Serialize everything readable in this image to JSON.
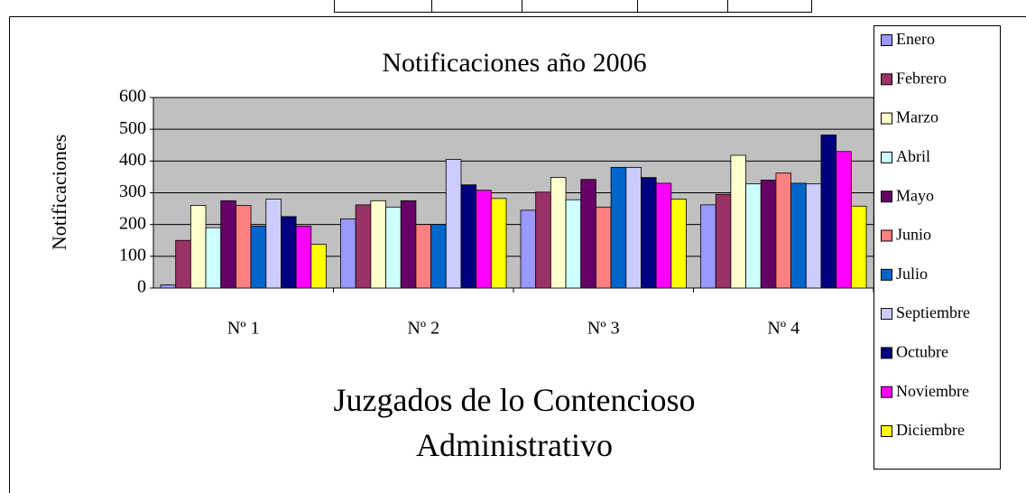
{
  "chart_data": {
    "type": "bar",
    "title": "Notificaciones año 2006",
    "ylabel": "Notificaciones",
    "xlabel": "Juzgados de lo Contencioso Administrativo",
    "categories": [
      "Nº 1",
      "Nº 2",
      "Nº 3",
      "Nº 4"
    ],
    "series": [
      {
        "name": "Enero",
        "color": "#9999ff",
        "values": [
          10,
          218,
          245,
          262
        ]
      },
      {
        "name": "Febrero",
        "color": "#993366",
        "values": [
          150,
          262,
          302,
          295
        ]
      },
      {
        "name": "Marzo",
        "color": "#ffffcc",
        "values": [
          260,
          275,
          348,
          418
        ]
      },
      {
        "name": "Abril",
        "color": "#ccffff",
        "values": [
          190,
          255,
          278,
          328
        ]
      },
      {
        "name": "Mayo",
        "color": "#660066",
        "values": [
          275,
          275,
          342,
          340
        ]
      },
      {
        "name": "Junio",
        "color": "#ff8080",
        "values": [
          260,
          200,
          255,
          362
        ]
      },
      {
        "name": "Julio",
        "color": "#0066cc",
        "values": [
          195,
          200,
          380,
          330
        ]
      },
      {
        "name": "Septiembre",
        "color": "#ccccff",
        "values": [
          280,
          405,
          380,
          328
        ]
      },
      {
        "name": "Octubre",
        "color": "#000080",
        "values": [
          225,
          325,
          348,
          482
        ]
      },
      {
        "name": "Noviembre",
        "color": "#ff00ff",
        "values": [
          195,
          308,
          330,
          430
        ]
      },
      {
        "name": "Diciembre",
        "color": "#ffff00",
        "values": [
          138,
          282,
          280,
          258
        ]
      }
    ],
    "ylim": [
      0,
      600
    ],
    "yticks": [
      0,
      100,
      200,
      300,
      400,
      500,
      600
    ],
    "grid": true,
    "legend": "right"
  }
}
